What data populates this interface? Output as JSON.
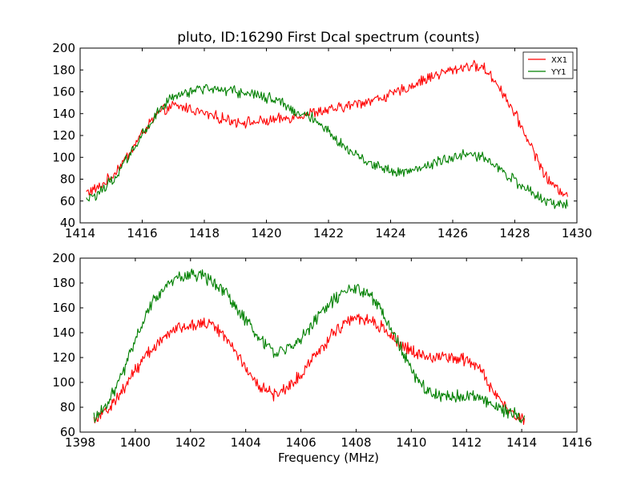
{
  "chart_data": [
    {
      "type": "line",
      "title": "pluto, ID:16290 First Dcal spectrum (counts)",
      "xlabel": "",
      "ylabel": "",
      "xlim": [
        1414,
        1430
      ],
      "ylim": [
        40,
        200
      ],
      "xticks": [
        1414,
        1416,
        1418,
        1420,
        1422,
        1424,
        1426,
        1428,
        1430
      ],
      "yticks": [
        40,
        60,
        80,
        100,
        120,
        140,
        160,
        180,
        200
      ],
      "legend": {
        "placement": "top-right",
        "entries": [
          "XX1",
          "YY1"
        ]
      },
      "grid": false,
      "x_range": [
        1414.2,
        1429.7
      ],
      "series": [
        {
          "name": "XX1",
          "color": "#ff0000",
          "noise": 4,
          "points": [
            [
              1414.2,
              68
            ],
            [
              1414.6,
              72
            ],
            [
              1415.0,
              82
            ],
            [
              1415.5,
              100
            ],
            [
              1416.0,
              122
            ],
            [
              1416.5,
              140
            ],
            [
              1417.0,
              147
            ],
            [
              1417.5,
              145
            ],
            [
              1418.0,
              140
            ],
            [
              1418.5,
              136
            ],
            [
              1419.0,
              133
            ],
            [
              1419.5,
              132
            ],
            [
              1420.0,
              133
            ],
            [
              1420.5,
              135
            ],
            [
              1421.0,
              138
            ],
            [
              1421.5,
              141
            ],
            [
              1422.0,
              143
            ],
            [
              1422.5,
              146
            ],
            [
              1423.0,
              150
            ],
            [
              1423.5,
              153
            ],
            [
              1424.0,
              157
            ],
            [
              1424.5,
              163
            ],
            [
              1425.0,
              170
            ],
            [
              1425.5,
              176
            ],
            [
              1426.0,
              180
            ],
            [
              1426.5,
              184
            ],
            [
              1427.0,
              182
            ],
            [
              1427.5,
              165
            ],
            [
              1428.0,
              140
            ],
            [
              1428.5,
              112
            ],
            [
              1429.0,
              82
            ],
            [
              1429.3,
              72
            ],
            [
              1429.7,
              67
            ]
          ]
        },
        {
          "name": "YY1",
          "color": "#008000",
          "noise": 4,
          "points": [
            [
              1414.2,
              60
            ],
            [
              1414.6,
              67
            ],
            [
              1415.0,
              78
            ],
            [
              1415.5,
              98
            ],
            [
              1416.0,
              120
            ],
            [
              1416.5,
              142
            ],
            [
              1417.0,
              155
            ],
            [
              1417.5,
              160
            ],
            [
              1418.0,
              163
            ],
            [
              1418.5,
              162
            ],
            [
              1419.0,
              160
            ],
            [
              1419.5,
              158
            ],
            [
              1420.0,
              155
            ],
            [
              1420.5,
              150
            ],
            [
              1421.0,
              142
            ],
            [
              1421.5,
              135
            ],
            [
              1422.0,
              123
            ],
            [
              1422.5,
              110
            ],
            [
              1423.0,
              100
            ],
            [
              1423.5,
              93
            ],
            [
              1424.0,
              88
            ],
            [
              1424.5,
              87
            ],
            [
              1425.0,
              90
            ],
            [
              1425.5,
              96
            ],
            [
              1426.0,
              100
            ],
            [
              1426.5,
              103
            ],
            [
              1427.0,
              100
            ],
            [
              1427.5,
              90
            ],
            [
              1428.0,
              78
            ],
            [
              1428.5,
              68
            ],
            [
              1429.0,
              60
            ],
            [
              1429.4,
              57
            ],
            [
              1429.7,
              58
            ]
          ]
        }
      ]
    },
    {
      "type": "line",
      "title": "",
      "xlabel": "Frequency (MHz)",
      "ylabel": "",
      "xlim": [
        1398,
        1416
      ],
      "ylim": [
        60,
        200
      ],
      "xticks": [
        1398,
        1400,
        1402,
        1404,
        1406,
        1408,
        1410,
        1412,
        1414,
        1416
      ],
      "yticks": [
        60,
        80,
        100,
        120,
        140,
        160,
        180,
        200
      ],
      "grid": false,
      "x_range": [
        1398.5,
        1414.1
      ],
      "series": [
        {
          "name": "XX1",
          "color": "#ff0000",
          "noise": 4,
          "points": [
            [
              1398.5,
              71
            ],
            [
              1399.0,
              78
            ],
            [
              1399.5,
              92
            ],
            [
              1400.0,
              110
            ],
            [
              1400.5,
              125
            ],
            [
              1401.0,
              135
            ],
            [
              1401.5,
              143
            ],
            [
              1402.0,
              147
            ],
            [
              1402.5,
              148
            ],
            [
              1403.0,
              143
            ],
            [
              1403.5,
              130
            ],
            [
              1404.0,
              112
            ],
            [
              1404.5,
              97
            ],
            [
              1405.0,
              90
            ],
            [
              1405.5,
              95
            ],
            [
              1406.0,
              107
            ],
            [
              1406.5,
              122
            ],
            [
              1407.0,
              135
            ],
            [
              1407.5,
              147
            ],
            [
              1408.0,
              152
            ],
            [
              1408.5,
              150
            ],
            [
              1409.0,
              143
            ],
            [
              1409.5,
              133
            ],
            [
              1410.0,
              125
            ],
            [
              1410.5,
              121
            ],
            [
              1411.0,
              120
            ],
            [
              1411.5,
              119
            ],
            [
              1412.0,
              118
            ],
            [
              1412.5,
              110
            ],
            [
              1413.0,
              92
            ],
            [
              1413.5,
              78
            ],
            [
              1414.1,
              70
            ]
          ]
        },
        {
          "name": "YY1",
          "color": "#008000",
          "noise": 4,
          "points": [
            [
              1398.5,
              72
            ],
            [
              1399.0,
              83
            ],
            [
              1399.5,
              105
            ],
            [
              1400.0,
              135
            ],
            [
              1400.5,
              160
            ],
            [
              1401.0,
              175
            ],
            [
              1401.5,
              183
            ],
            [
              1402.0,
              187
            ],
            [
              1402.5,
              185
            ],
            [
              1403.0,
              178
            ],
            [
              1403.5,
              165
            ],
            [
              1404.0,
              150
            ],
            [
              1404.5,
              135
            ],
            [
              1405.0,
              125
            ],
            [
              1405.5,
              127
            ],
            [
              1406.0,
              135
            ],
            [
              1406.5,
              150
            ],
            [
              1407.0,
              162
            ],
            [
              1407.5,
              172
            ],
            [
              1408.0,
              176
            ],
            [
              1408.5,
              170
            ],
            [
              1409.0,
              155
            ],
            [
              1409.5,
              133
            ],
            [
              1410.0,
              110
            ],
            [
              1410.5,
              95
            ],
            [
              1411.0,
              90
            ],
            [
              1411.5,
              88
            ],
            [
              1412.0,
              89
            ],
            [
              1412.5,
              87
            ],
            [
              1413.0,
              82
            ],
            [
              1413.5,
              76
            ],
            [
              1414.1,
              72
            ]
          ]
        }
      ]
    }
  ]
}
